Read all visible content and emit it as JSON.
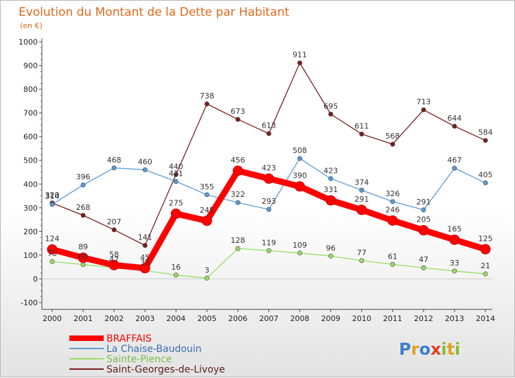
{
  "chart_data": {
    "type": "line",
    "title": "Evolution du Montant de la Dette par Habitant",
    "subtitle": "(en €)",
    "x": [
      "2000",
      "2001",
      "2002",
      "2003",
      "2004",
      "2005",
      "2006",
      "2007",
      "2008",
      "2009",
      "2010",
      "2011",
      "2012",
      "2013",
      "2014"
    ],
    "ylim": [
      -100,
      1000
    ],
    "yticks": [
      -100,
      0,
      100,
      200,
      300,
      400,
      500,
      600,
      700,
      800,
      900,
      1000
    ],
    "grid": false,
    "legend_position": "bottom-left",
    "series": [
      {
        "name": "BRAFFAIS",
        "color": "#ff0000",
        "values": [
          124,
          89,
          58,
          45,
          275,
          245,
          456,
          423,
          390,
          331,
          291,
          246,
          205,
          165,
          125
        ]
      },
      {
        "name": "La Chaise-Baudouin",
        "color": "#5b9bd5",
        "values": [
          314,
          396,
          468,
          460,
          411,
          355,
          322,
          293,
          508,
          423,
          374,
          326,
          291,
          467,
          405
        ]
      },
      {
        "name": "Sainte-Pience",
        "color": "#99dd66",
        "values": [
          73,
          60,
          47,
          35,
          16,
          3,
          128,
          119,
          109,
          96,
          77,
          61,
          47,
          33,
          21
        ]
      },
      {
        "name": "Saint-Georges-de-Livoye",
        "color": "#7a1e1e",
        "values": [
          320,
          268,
          207,
          141,
          440,
          738,
          673,
          613,
          911,
          695,
          611,
          568,
          713,
          644,
          584
        ]
      }
    ]
  },
  "logo": {
    "letters": [
      "P",
      "r",
      "o",
      "x",
      "i",
      "t",
      "i"
    ],
    "colors": [
      "#3a7fd0",
      "#e0a020",
      "#3a7fd0",
      "#e04020",
      "#88bb33",
      "#e0a020",
      "#88bb33"
    ]
  }
}
